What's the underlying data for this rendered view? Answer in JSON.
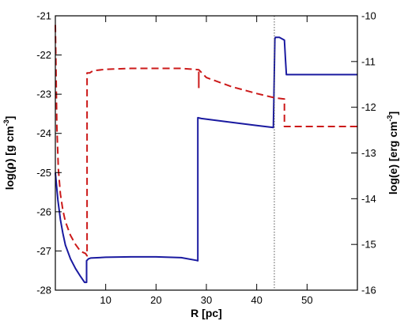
{
  "chart_data": {
    "type": "line",
    "title": "",
    "xlabel": "R [pc]",
    "ylabel_left": {
      "base": "log(",
      "symbol": "ρ",
      "rest": ") [g cm",
      "sup": "-3",
      "end": "]"
    },
    "ylabel_right": {
      "base": "log(e) [erg cm",
      "sup": "-3",
      "end": "]"
    },
    "xlim": [
      0,
      60
    ],
    "ylim_left": [
      -28,
      -21
    ],
    "ylim_right": [
      -16,
      -10
    ],
    "x_ticks": [
      10,
      20,
      30,
      40,
      50
    ],
    "y_ticks_left": [
      -28,
      -27,
      -26,
      -25,
      -24,
      -23,
      -22,
      -21
    ],
    "y_ticks_right": [
      -16,
      -15,
      -14,
      -13,
      -12,
      -11,
      -10
    ],
    "grid": false,
    "legend": "none",
    "vertical_marker": {
      "x": 43.5,
      "color": "#555555",
      "style": "dotted"
    },
    "series": [
      {
        "axis": "left",
        "color": "#1a1aa0",
        "style": "solid",
        "x": [
          0.0,
          0.5,
          1.0,
          1.5,
          2.0,
          3.0,
          4.0,
          5.0,
          5.8,
          6.2,
          6.2,
          6.6,
          7.0,
          10.0,
          15.0,
          20.0,
          25.0,
          28.0,
          28.3,
          28.3,
          29.0,
          35.0,
          40.0,
          43.3,
          43.4,
          43.6,
          43.7,
          44.5,
          45.5,
          45.7,
          45.9,
          50.0,
          55.0,
          60.0
        ],
        "values": [
          -25.0,
          -25.7,
          -26.2,
          -26.55,
          -26.85,
          -27.2,
          -27.45,
          -27.65,
          -27.8,
          -27.8,
          -27.25,
          -27.2,
          -27.18,
          -27.16,
          -27.15,
          -27.15,
          -27.17,
          -27.24,
          -27.25,
          -23.6,
          -23.62,
          -23.72,
          -23.8,
          -23.85,
          -23.2,
          -21.6,
          -21.55,
          -21.55,
          -21.62,
          -22.1,
          -22.5,
          -22.5,
          -22.5,
          -22.5
        ]
      },
      {
        "axis": "right",
        "color": "#cc1a1a",
        "style": "dashed",
        "x": [
          0.0,
          0.3,
          0.6,
          1.0,
          1.5,
          2.0,
          3.0,
          4.0,
          5.0,
          6.0,
          6.3,
          6.3,
          6.8,
          7.5,
          10.0,
          15.0,
          20.0,
          25.0,
          28.5,
          30.0,
          35.0,
          40.0,
          43.0,
          44.0,
          45.5,
          45.5,
          46.0,
          50.0,
          55.0,
          60.0
        ],
        "values": [
          -10.2,
          -12.4,
          -13.35,
          -13.9,
          -14.25,
          -14.5,
          -14.8,
          -15.0,
          -15.15,
          -15.2,
          -15.25,
          -11.25,
          -11.25,
          -11.2,
          -11.17,
          -11.15,
          -11.15,
          -11.15,
          -11.18,
          -11.35,
          -11.55,
          -11.7,
          -11.78,
          -11.8,
          -11.82,
          -12.42,
          -12.42,
          -12.42,
          -12.42,
          -12.42
        ]
      },
      {
        "axis": "right",
        "color": "#cc1a1a",
        "style": "solid",
        "x": [
          28.5,
          28.5
        ],
        "values": [
          -11.22,
          -11.58
        ]
      }
    ]
  }
}
